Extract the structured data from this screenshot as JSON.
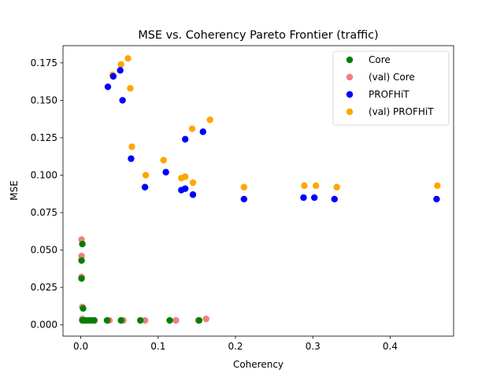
{
  "chart_data": {
    "type": "scatter",
    "title": "MSE vs. Coherency Pareto Frontier (traffic)",
    "xlabel": "Coherency",
    "ylabel": "MSE",
    "xlim": [
      -0.023,
      0.482
    ],
    "ylim": [
      -0.0075,
      0.1865
    ],
    "xticks": [
      {
        "value": 0.0,
        "label": "0.0"
      },
      {
        "value": 0.1,
        "label": "0.1"
      },
      {
        "value": 0.2,
        "label": "0.2"
      },
      {
        "value": 0.3,
        "label": "0.3"
      },
      {
        "value": 0.4,
        "label": "0.4"
      }
    ],
    "yticks": [
      {
        "value": 0.0,
        "label": "0.000"
      },
      {
        "value": 0.025,
        "label": "0.025"
      },
      {
        "value": 0.05,
        "label": "0.050"
      },
      {
        "value": 0.075,
        "label": "0.075"
      },
      {
        "value": 0.1,
        "label": "0.100"
      },
      {
        "value": 0.125,
        "label": "0.125"
      },
      {
        "value": 0.15,
        "label": "0.150"
      },
      {
        "value": 0.175,
        "label": "0.175"
      }
    ],
    "grid": false,
    "legend_position": "upper right",
    "series": [
      {
        "name": "(val) Core",
        "color": "#f08080",
        "points": [
          [
            0.001,
            0.057
          ],
          [
            0.001,
            0.046
          ],
          [
            0.001,
            0.032
          ],
          [
            0.002,
            0.012
          ],
          [
            0.002,
            0.004
          ],
          [
            0.005,
            0.003
          ],
          [
            0.012,
            0.003
          ],
          [
            0.018,
            0.003
          ],
          [
            0.037,
            0.003
          ],
          [
            0.055,
            0.003
          ],
          [
            0.083,
            0.003
          ],
          [
            0.123,
            0.003
          ],
          [
            0.152,
            0.003
          ],
          [
            0.162,
            0.004
          ]
        ]
      },
      {
        "name": "(val) PROFHiT",
        "color": "#ffa500",
        "points": [
          [
            0.041,
            0.167
          ],
          [
            0.052,
            0.174
          ],
          [
            0.061,
            0.178
          ],
          [
            0.064,
            0.158
          ],
          [
            0.066,
            0.119
          ],
          [
            0.084,
            0.1
          ],
          [
            0.107,
            0.11
          ],
          [
            0.13,
            0.098
          ],
          [
            0.135,
            0.099
          ],
          [
            0.144,
            0.131
          ],
          [
            0.145,
            0.095
          ],
          [
            0.167,
            0.137
          ],
          [
            0.211,
            0.092
          ],
          [
            0.289,
            0.093
          ],
          [
            0.304,
            0.093
          ],
          [
            0.331,
            0.092
          ],
          [
            0.461,
            0.093
          ]
        ]
      },
      {
        "name": "Core",
        "color": "#008000",
        "points": [
          [
            0.002,
            0.054
          ],
          [
            0.001,
            0.043
          ],
          [
            0.001,
            0.031
          ],
          [
            0.003,
            0.011
          ],
          [
            0.002,
            0.003
          ],
          [
            0.004,
            0.003
          ],
          [
            0.007,
            0.003
          ],
          [
            0.01,
            0.003
          ],
          [
            0.014,
            0.003
          ],
          [
            0.017,
            0.003
          ],
          [
            0.034,
            0.003
          ],
          [
            0.052,
            0.003
          ],
          [
            0.077,
            0.003
          ],
          [
            0.115,
            0.003
          ],
          [
            0.153,
            0.003
          ]
        ]
      },
      {
        "name": "PROFHiT",
        "color": "#0000ff",
        "points": [
          [
            0.035,
            0.159
          ],
          [
            0.042,
            0.166
          ],
          [
            0.051,
            0.17
          ],
          [
            0.054,
            0.15
          ],
          [
            0.065,
            0.111
          ],
          [
            0.083,
            0.092
          ],
          [
            0.11,
            0.102
          ],
          [
            0.13,
            0.09
          ],
          [
            0.135,
            0.091
          ],
          [
            0.135,
            0.124
          ],
          [
            0.145,
            0.087
          ],
          [
            0.158,
            0.129
          ],
          [
            0.211,
            0.084
          ],
          [
            0.288,
            0.085
          ],
          [
            0.302,
            0.085
          ],
          [
            0.328,
            0.084
          ],
          [
            0.46,
            0.084
          ]
        ]
      }
    ],
    "legend": [
      {
        "label": "Core",
        "color": "#008000"
      },
      {
        "label": "(val) Core",
        "color": "#f08080"
      },
      {
        "label": "PROFHiT",
        "color": "#0000ff"
      },
      {
        "label": "(val) PROFHiT",
        "color": "#ffa500"
      }
    ]
  }
}
